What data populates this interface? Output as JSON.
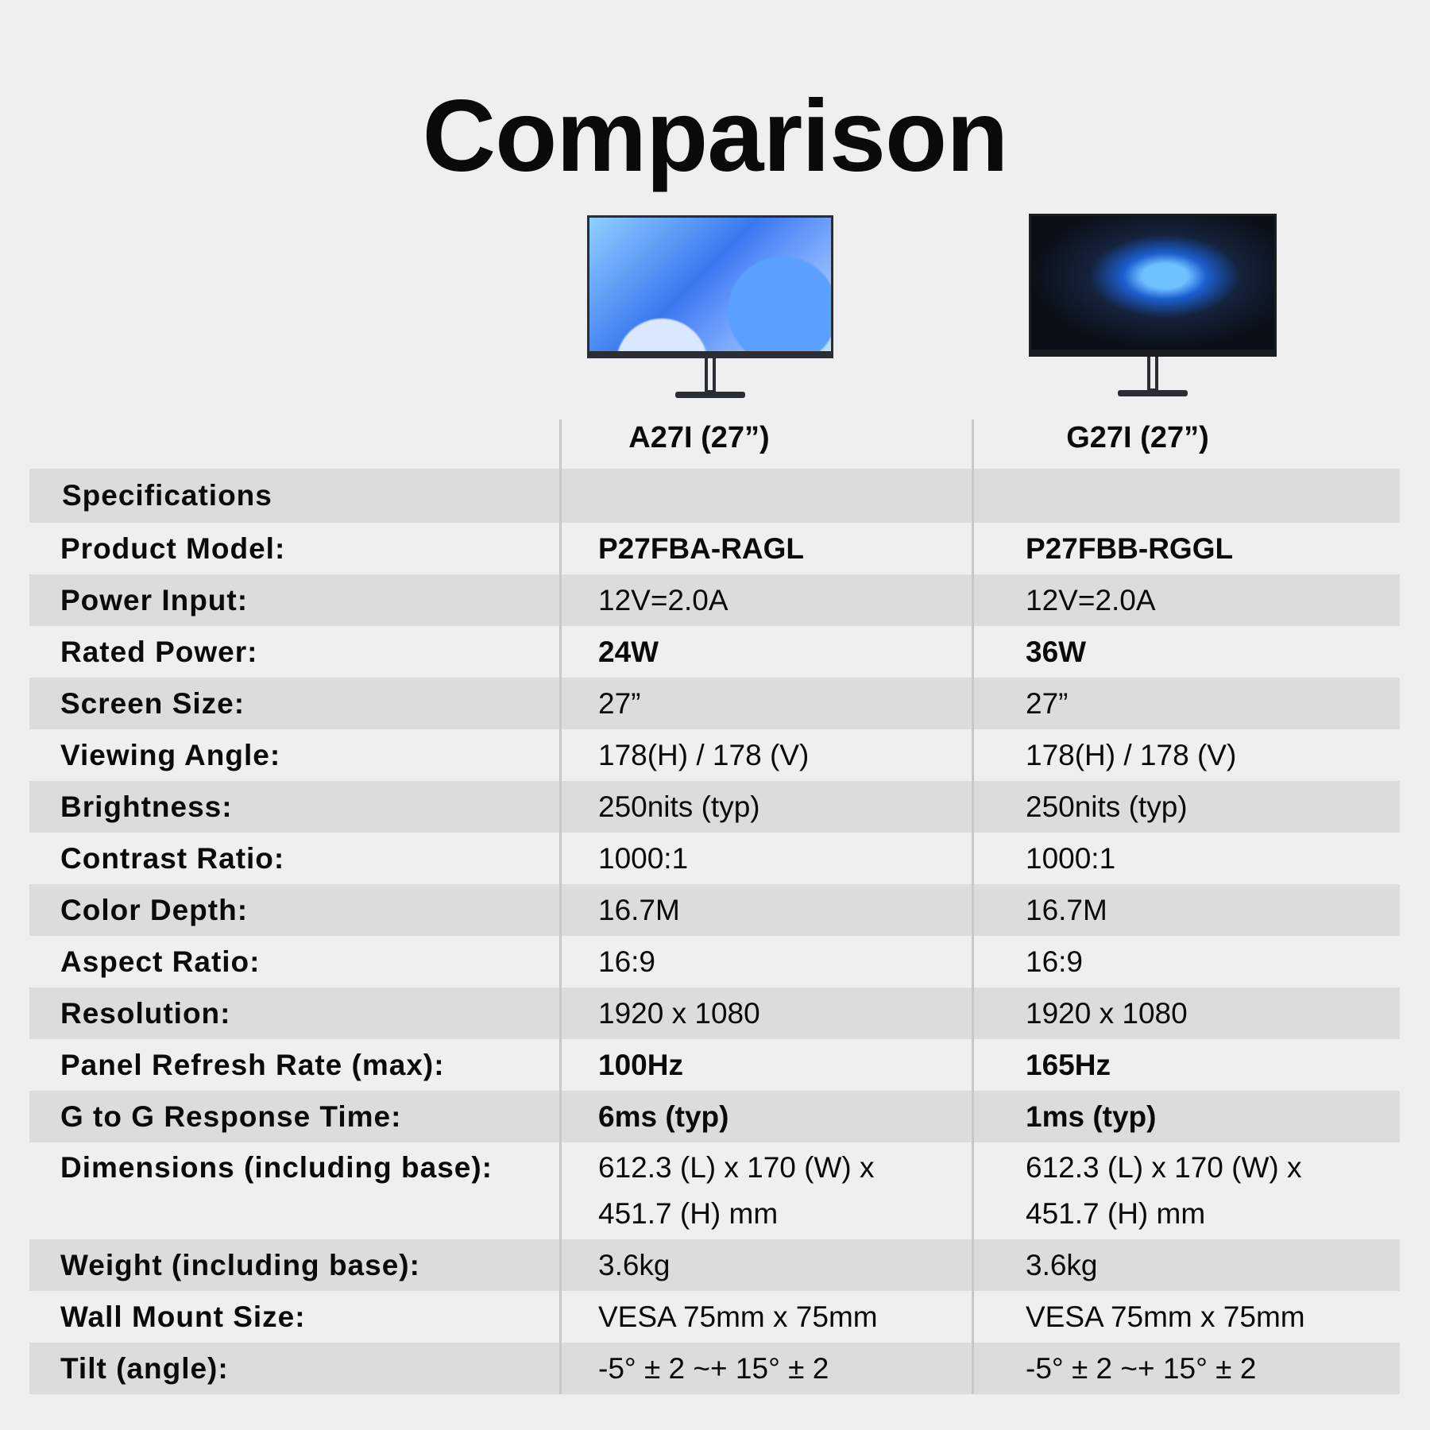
{
  "title": "Comparison",
  "products": [
    {
      "name": "A27I (27”)",
      "image": "monitor-a27i"
    },
    {
      "name": "G27I (27”)",
      "image": "monitor-g27i"
    }
  ],
  "section_header": "Specifications",
  "rows": [
    {
      "label": "Product Model:",
      "a": "P27FBA-RAGL",
      "b": "P27FBB-RGGL",
      "bold": true
    },
    {
      "label": "Power Input:",
      "a": "12V=2.0A",
      "b": "12V=2.0A"
    },
    {
      "label": "Rated Power:",
      "a": "24W",
      "b": "36W",
      "bold": true
    },
    {
      "label": "Screen Size:",
      "a": "27”",
      "b": "27”"
    },
    {
      "label": "Viewing Angle:",
      "a": "178(H) / 178 (V)",
      "b": "178(H) / 178 (V)"
    },
    {
      "label": "Brightness:",
      "a": "250nits (typ)",
      "b": "250nits (typ)"
    },
    {
      "label": "Contrast Ratio:",
      "a": "1000:1",
      "b": "1000:1"
    },
    {
      "label": "Color Depth:",
      "a": "16.7M",
      "b": "16.7M"
    },
    {
      "label": "Aspect Ratio:",
      "a": "16:9",
      "b": "16:9"
    },
    {
      "label": "Resolution:",
      "a": "1920 x 1080",
      "b": "1920 x 1080"
    },
    {
      "label": "Panel Refresh Rate (max):",
      "a": "100Hz",
      "b": "165Hz",
      "bold": true
    },
    {
      "label": "G to G Response Time:",
      "a": "6ms (typ)",
      "b": "1ms (typ)",
      "bold": true
    },
    {
      "label": "Dimensions (including base):",
      "a": "612.3 (L) x 170 (W) x",
      "a2": "451.7 (H) mm",
      "b": "612.3 (L) x 170 (W) x",
      "b2": "451.7 (H) mm"
    },
    {
      "label": "Weight (including base):",
      "a": "3.6kg",
      "b": "3.6kg"
    },
    {
      "label": "Wall Mount Size:",
      "a": "VESA 75mm x 75mm",
      "b": "VESA 75mm x 75mm"
    },
    {
      "label": "Tilt (angle):",
      "a": "-5° ± 2 ~+ 15° ± 2",
      "b": "-5° ± 2 ~+ 15° ± 2"
    }
  ]
}
